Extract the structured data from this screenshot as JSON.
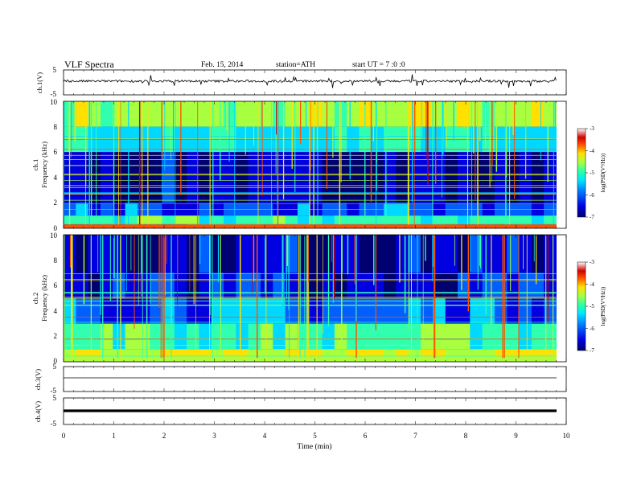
{
  "header": {
    "title": "VLF  Spectra",
    "date": "Feb. 15, 2014",
    "station": "station=ATH",
    "start": "start  UT  =   7  :0  :0"
  },
  "x_axis": {
    "label": "Time  (min)",
    "ticks": [
      "0",
      "1",
      "2",
      "3",
      "4",
      "5",
      "6",
      "7",
      "8",
      "9",
      "10"
    ],
    "range": [
      0,
      10
    ],
    "data_end": 9.8
  },
  "colors": {
    "colormap": [
      "#000070",
      "#0000e0",
      "#0060ff",
      "#00d8ff",
      "#30ffb0",
      "#a8ff40",
      "#ffe000",
      "#ff5000",
      "#d00000",
      "#ffffff"
    ],
    "trace": "#000000"
  },
  "panels": {
    "ch1_wave": {
      "ylabel": "ch.1(V)",
      "ticks": [
        "5",
        "-5"
      ]
    },
    "ch1_spec": {
      "ylabel_top": "ch.1",
      "ylabel": "Frequency  (kHz)",
      "ticks": [
        "10",
        "8",
        "6",
        "4",
        "2",
        "0"
      ],
      "cb_label": "log(PSD(V²/Hz))",
      "cb_ticks": [
        "-3",
        "-4",
        "-5",
        "-6",
        "-7"
      ]
    },
    "ch2_spec": {
      "ylabel_top": "ch.2",
      "ylabel": "Frequency  (kHz)",
      "ticks": [
        "10",
        "8",
        "6",
        "4",
        "2",
        "0"
      ],
      "cb_label": "log(PSD(V²/Hz))",
      "cb_ticks": [
        "-3",
        "-4",
        "-5",
        "-6",
        "-7"
      ]
    },
    "ch3_wave": {
      "ylabel": "ch.3(V)",
      "ticks": [
        "5",
        "-5"
      ]
    },
    "ch4_wave": {
      "ylabel": "ch.4(V)",
      "ticks": [
        "5",
        "-5"
      ]
    }
  },
  "chart_data": [
    {
      "type": "line",
      "title": "",
      "ylabel": "ch.1(V)",
      "xlabel": "",
      "ylim": [
        -5,
        5
      ],
      "xlim": [
        0,
        10
      ],
      "description_values": {
        "baseline_V": 0.5,
        "spike_amplitude_V": 2.5
      }
    },
    {
      "type": "heatmap",
      "ylabel": "Frequency  (kHz)",
      "ylim": [
        0,
        10
      ],
      "xlim": [
        0,
        9.8
      ],
      "color_range_log_psd": [
        -7,
        -3
      ],
      "levels": [
        {
          "f_min": 8.0,
          "f_max": 10.0,
          "log_psd": -4.6
        },
        {
          "f_min": 6.0,
          "f_max": 8.0,
          "log_psd": -5.3
        },
        {
          "f_min": 2.0,
          "f_max": 6.0,
          "log_psd": -6.5
        },
        {
          "f_min": 1.0,
          "f_max": 2.0,
          "log_psd": -6.0
        },
        {
          "f_min": 0.3,
          "f_max": 1.0,
          "log_psd": -5.0
        },
        {
          "f_min": 0.0,
          "f_max": 0.3,
          "log_psd": -3.6
        }
      ]
    },
    {
      "type": "heatmap",
      "ylabel": "Frequency  (kHz)",
      "ylim": [
        0,
        10
      ],
      "xlim": [
        0,
        9.8
      ],
      "color_range_log_psd": [
        -7,
        -3
      ],
      "levels": [
        {
          "f_min": 7.0,
          "f_max": 10.0,
          "log_psd": -6.4
        },
        {
          "f_min": 5.0,
          "f_max": 7.0,
          "log_psd": -6.3
        },
        {
          "f_min": 3.0,
          "f_max": 5.0,
          "log_psd": -5.8
        },
        {
          "f_min": 1.0,
          "f_max": 3.0,
          "log_psd": -5.0
        },
        {
          "f_min": 0.0,
          "f_max": 1.0,
          "log_psd": -4.3
        }
      ]
    },
    {
      "type": "line",
      "ylabel": "ch.3(V)",
      "ylim": [
        -5,
        5
      ],
      "xlim": [
        0,
        9.8
      ],
      "description_values": {
        "baseline_V": 0.0
      }
    },
    {
      "type": "line",
      "ylabel": "ch.4(V)",
      "ylim": [
        -5,
        5
      ],
      "xlim": [
        0,
        9.8
      ],
      "description_values": {
        "baseline_V": 0.0
      }
    }
  ]
}
